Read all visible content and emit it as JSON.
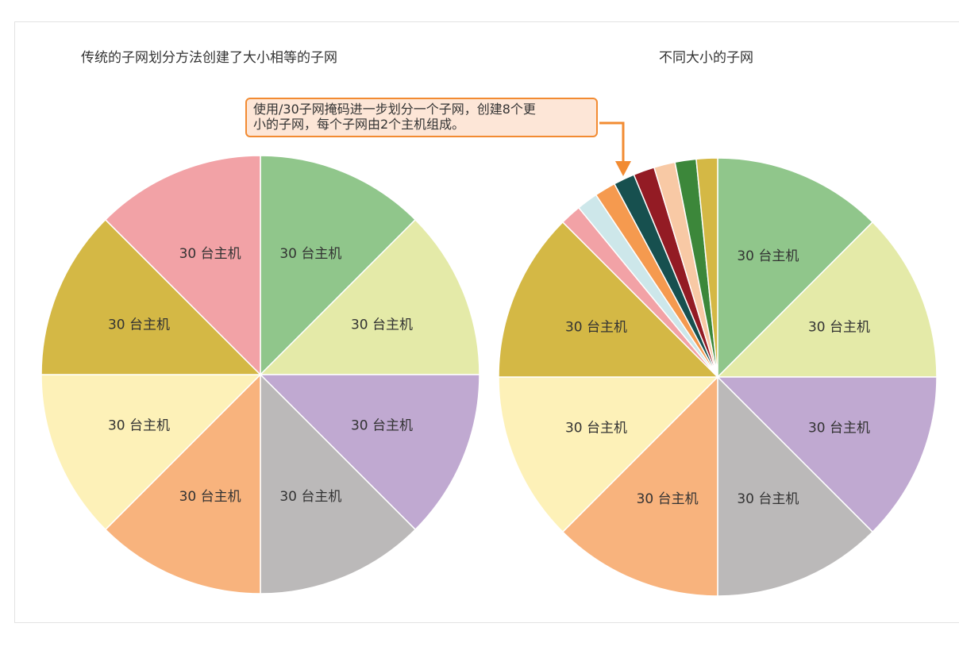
{
  "chart_data": [
    {
      "type": "pie",
      "title": "传统的子网划分方法创建了大小相等的子网",
      "slices": [
        {
          "label": "30 台主机",
          "value": 30,
          "color": "#90c68b"
        },
        {
          "label": "30 台主机",
          "value": 30,
          "color": "#e4eaa8"
        },
        {
          "label": "30 台主机",
          "value": 30,
          "color": "#c0a9d1"
        },
        {
          "label": "30 台主机",
          "value": 30,
          "color": "#bbb9b9"
        },
        {
          "label": "30 台主机",
          "value": 30,
          "color": "#f8b37d"
        },
        {
          "label": "30 台主机",
          "value": 30,
          "color": "#fdf1b8"
        },
        {
          "label": "30 台主机",
          "value": 30,
          "color": "#d4b845"
        },
        {
          "label": "30 台主机",
          "value": 30,
          "color": "#f2a2a6"
        }
      ]
    },
    {
      "type": "pie",
      "title": "不同大小的子网",
      "slices": [
        {
          "label": "30 台主机",
          "value": 30,
          "color": "#90c68b"
        },
        {
          "label": "30 台主机",
          "value": 30,
          "color": "#e4eaa8"
        },
        {
          "label": "30 台主机",
          "value": 30,
          "color": "#c0a9d1"
        },
        {
          "label": "30 台主机",
          "value": 30,
          "color": "#bbb9b9"
        },
        {
          "label": "30 台主机",
          "value": 30,
          "color": "#f8b37d"
        },
        {
          "label": "30 台主机",
          "value": 30,
          "color": "#fdf1b8"
        },
        {
          "label": "30 台主机",
          "value": 30,
          "color": "#d4b845"
        },
        {
          "label": "",
          "value": 3.75,
          "color": "#f2a2a6"
        },
        {
          "label": "",
          "value": 3.75,
          "color": "#cde7ea"
        },
        {
          "label": "",
          "value": 3.75,
          "color": "#f59a4f"
        },
        {
          "label": "",
          "value": 3.75,
          "color": "#17504f"
        },
        {
          "label": "",
          "value": 3.75,
          "color": "#931b24"
        },
        {
          "label": "",
          "value": 3.75,
          "color": "#f8c9a5"
        },
        {
          "label": "",
          "value": 3.75,
          "color": "#3c873a"
        },
        {
          "label": "",
          "value": 3.75,
          "color": "#d4b845"
        }
      ]
    }
  ],
  "callout": {
    "line1": "使用/30子网掩码进一步划分一个子网，创建8个更",
    "line2": "小的子网，每个子网由2个主机组成。",
    "border_color": "#f28b32",
    "background_color": "#fde6d7"
  }
}
